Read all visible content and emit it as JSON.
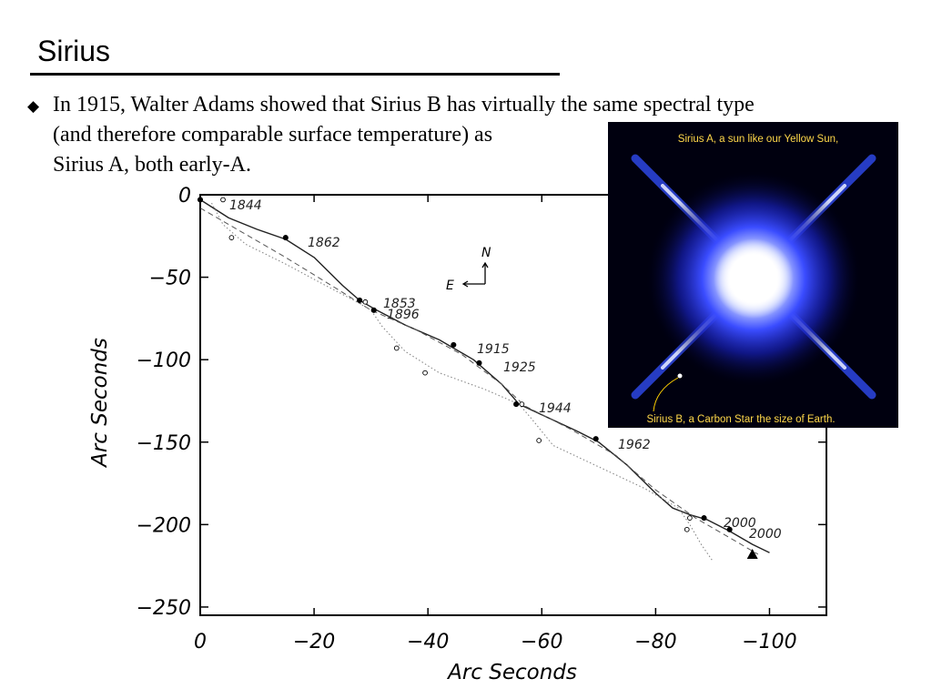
{
  "slide": {
    "title": "Sirius",
    "bullet_lines": [
      "In 1915, Walter Adams showed that Sirius B has virtually the same spectral type",
      "(and therefore comparable surface temperature) as",
      "Sirius A, both early-A."
    ]
  },
  "inset": {
    "caption_top": "Sirius A, a sun like our Yellow Sun,",
    "caption_bottom": "Sirius B, a Carbon Star the size of Earth."
  },
  "compass": {
    "north": "N",
    "east": "E"
  },
  "chart_data": {
    "type": "line",
    "xlabel": "Arc Seconds",
    "ylabel": "Arc Seconds",
    "xlim": [
      0,
      -110
    ],
    "ylim": [
      -255,
      0
    ],
    "x_ticks": [
      0,
      -20,
      -40,
      -60,
      -80,
      -100
    ],
    "x_tick_labels": [
      "0",
      "−20",
      "−40",
      "−60",
      "−80",
      "−100"
    ],
    "y_ticks": [
      0,
      -50,
      -100,
      -150,
      -200,
      -250
    ],
    "y_tick_labels": [
      "0",
      "−50",
      "−100",
      "−150",
      "−200",
      "−250"
    ],
    "year_labels": [
      "1844",
      "1862",
      "1853",
      "1896",
      "1915",
      "1925",
      "1944",
      "1962",
      "2000",
      "2000"
    ],
    "series": [
      {
        "style": "solid",
        "x": [
          0,
          -5,
          -10,
          -15,
          -20,
          -25,
          -28,
          -31,
          -36,
          -42,
          -48,
          -53,
          -56,
          -61,
          -66,
          -70,
          -75,
          -80,
          -83,
          -86,
          -89,
          -93,
          -97,
          -100
        ],
        "y": [
          -3,
          -14,
          -21,
          -27,
          -38,
          -55,
          -64,
          -70,
          -79,
          -88,
          -100,
          -115,
          -127,
          -135,
          -143,
          -150,
          -164,
          -181,
          -190,
          -194,
          -197,
          -204,
          -212,
          -217
        ]
      },
      {
        "style": "dashed",
        "x": [
          0,
          -7,
          -15,
          -24,
          -30,
          -38,
          -46,
          -53,
          -57,
          -65,
          -73,
          -80,
          -87,
          -93,
          -98
        ],
        "y": [
          -8,
          -22,
          -38,
          -57,
          -70,
          -82,
          -97,
          -115,
          -128,
          -142,
          -158,
          -179,
          -196,
          -208,
          -218
        ]
      },
      {
        "style": "dotted",
        "x": [
          -2,
          -4,
          -8,
          -15,
          -22,
          -27,
          -30,
          -32,
          -36,
          -42,
          -50,
          -56,
          -58,
          -62,
          -70,
          -78,
          -84,
          -86,
          -88,
          -90
        ],
        "y": [
          -5,
          -18,
          -30,
          -42,
          -55,
          -64,
          -70,
          -80,
          -95,
          -108,
          -118,
          -127,
          -135,
          -152,
          -165,
          -178,
          -190,
          -200,
          -212,
          -222
        ]
      }
    ],
    "points": [
      {
        "x": 0,
        "y": -3,
        "filled": true
      },
      {
        "x": -4,
        "y": -3,
        "filled": false
      },
      {
        "x": -15,
        "y": -26,
        "filled": true
      },
      {
        "x": -5.5,
        "y": -26,
        "filled": false
      },
      {
        "x": -28,
        "y": -64,
        "filled": true
      },
      {
        "x": -29,
        "y": -65,
        "filled": false
      },
      {
        "x": -30.5,
        "y": -70,
        "filled": true
      },
      {
        "x": -44.5,
        "y": -91,
        "filled": true
      },
      {
        "x": -34.5,
        "y": -93,
        "filled": false
      },
      {
        "x": -49,
        "y": -102,
        "filled": true
      },
      {
        "x": -39.5,
        "y": -108,
        "filled": false
      },
      {
        "x": -55.5,
        "y": -127,
        "filled": true
      },
      {
        "x": -56.5,
        "y": -127,
        "filled": false
      },
      {
        "x": -69.5,
        "y": -148,
        "filled": true
      },
      {
        "x": -59.5,
        "y": -149,
        "filled": false
      },
      {
        "x": -88.5,
        "y": -196,
        "filled": true
      },
      {
        "x": -86,
        "y": -196,
        "filled": false
      },
      {
        "x": -93,
        "y": -203,
        "filled": true
      },
      {
        "x": -85.5,
        "y": -203,
        "filled": false
      }
    ],
    "end_marker": {
      "x": -97,
      "y": -218
    }
  }
}
